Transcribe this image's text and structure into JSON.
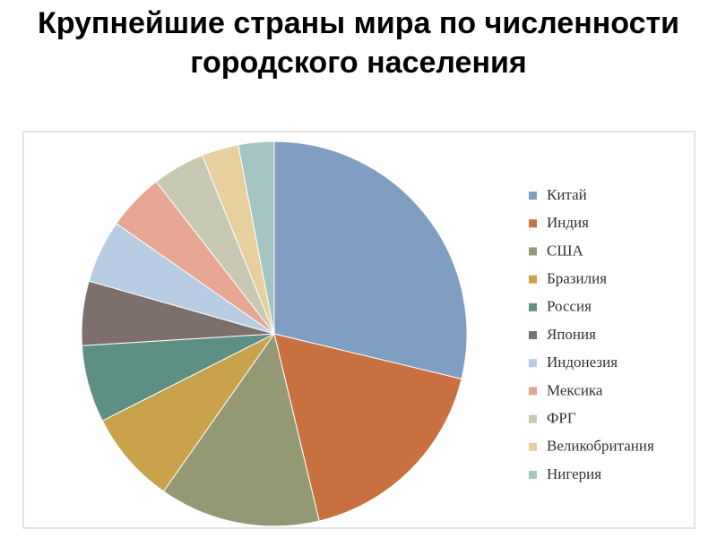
{
  "chart_data": {
    "type": "pie",
    "title": "Крупнейшие страны мира по численности городского населения",
    "categories": [
      "Китай",
      "Индия",
      "США",
      "Бразилия",
      "Россия",
      "Япония",
      "Индонезия",
      "Мексика",
      "ФРГ",
      "Великобритания",
      "Нигерия"
    ],
    "values": [
      28.8,
      17.5,
      13.5,
      7.8,
      6.5,
      5.4,
      5.3,
      4.8,
      4.4,
      3.1,
      3.0
    ],
    "colors": [
      "#809ec2",
      "#c87040",
      "#949874",
      "#c9a24c",
      "#5e8f85",
      "#7d6f6c",
      "#b8cde3",
      "#e6a692",
      "#c7c9b2",
      "#e8cf9e",
      "#a4c5c1"
    ],
    "legend": "right"
  }
}
